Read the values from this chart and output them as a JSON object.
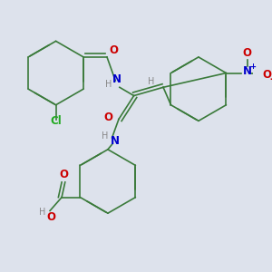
{
  "bg_color": "#dde2ec",
  "bond_color": "#3a7a3a",
  "atom_colors": {
    "O": "#cc0000",
    "N": "#0000cc",
    "Cl": "#22aa22",
    "H": "#888888",
    "C": "#3a7a3a"
  }
}
